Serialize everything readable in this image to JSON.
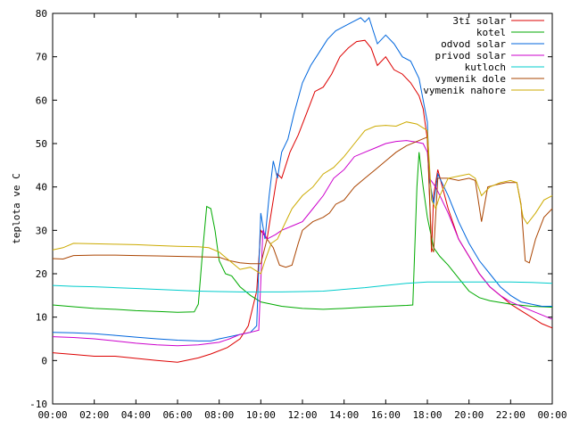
{
  "chart_data": {
    "type": "line",
    "title": "",
    "xlabel": "",
    "ylabel": "teplota ve C",
    "xlim": [
      0,
      24
    ],
    "ylim": [
      -10,
      80
    ],
    "xticks": [
      "00:00",
      "02:00",
      "04:00",
      "06:00",
      "08:00",
      "10:00",
      "12:00",
      "14:00",
      "16:00",
      "18:00",
      "20:00",
      "22:00",
      "00:00"
    ],
    "yticks": [
      -10,
      0,
      10,
      20,
      30,
      40,
      50,
      60,
      70,
      80
    ],
    "grid": false,
    "legend_position": "top-right",
    "series": [
      {
        "name": "3ti solar",
        "color": "#dd0000",
        "points": [
          [
            0,
            1.8
          ],
          [
            1,
            1.4
          ],
          [
            2,
            1.0
          ],
          [
            3,
            1.0
          ],
          [
            4,
            0.5
          ],
          [
            5,
            0
          ],
          [
            6,
            -0.4
          ],
          [
            7,
            0.6
          ],
          [
            7.6,
            1.5
          ],
          [
            8.4,
            3.0
          ],
          [
            9,
            5
          ],
          [
            9.4,
            8
          ],
          [
            9.8,
            16
          ],
          [
            10,
            30
          ],
          [
            10.3,
            28
          ],
          [
            10.6,
            37
          ],
          [
            10.8,
            43
          ],
          [
            11,
            42
          ],
          [
            11.4,
            48
          ],
          [
            11.8,
            52
          ],
          [
            12.2,
            57
          ],
          [
            12.6,
            62
          ],
          [
            13,
            63
          ],
          [
            13.4,
            66
          ],
          [
            13.8,
            70
          ],
          [
            14.2,
            72
          ],
          [
            14.6,
            73.5
          ],
          [
            15,
            73.8
          ],
          [
            15.3,
            72
          ],
          [
            15.6,
            68
          ],
          [
            16,
            70
          ],
          [
            16.4,
            67
          ],
          [
            16.8,
            66
          ],
          [
            17.2,
            64
          ],
          [
            17.6,
            61
          ],
          [
            17.8,
            58
          ],
          [
            18,
            51
          ],
          [
            18.2,
            25
          ],
          [
            18.3,
            38
          ],
          [
            18.5,
            44
          ],
          [
            19,
            35
          ],
          [
            19.5,
            28
          ],
          [
            20,
            24
          ],
          [
            20.5,
            20
          ],
          [
            21,
            17
          ],
          [
            21.5,
            15
          ],
          [
            22,
            13
          ],
          [
            22.5,
            11.5
          ],
          [
            23,
            10
          ],
          [
            23.5,
            8.5
          ],
          [
            24,
            7.5
          ]
        ]
      },
      {
        "name": "kotel",
        "color": "#00aa00",
        "points": [
          [
            0,
            12.8
          ],
          [
            1,
            12.4
          ],
          [
            2,
            12
          ],
          [
            3,
            11.8
          ],
          [
            4,
            11.5
          ],
          [
            5,
            11.3
          ],
          [
            6,
            11.1
          ],
          [
            6.8,
            11.2
          ],
          [
            7,
            13
          ],
          [
            7.2,
            25
          ],
          [
            7.4,
            35.5
          ],
          [
            7.6,
            35
          ],
          [
            7.8,
            30
          ],
          [
            8,
            23
          ],
          [
            8.3,
            20
          ],
          [
            8.6,
            19.5
          ],
          [
            9,
            17
          ],
          [
            9.5,
            15
          ],
          [
            10,
            13.5
          ],
          [
            11,
            12.5
          ],
          [
            12,
            12
          ],
          [
            13,
            11.8
          ],
          [
            14,
            12
          ],
          [
            15,
            12.3
          ],
          [
            16,
            12.5
          ],
          [
            17,
            12.7
          ],
          [
            17.3,
            12.8
          ],
          [
            17.5,
            40
          ],
          [
            17.6,
            48
          ],
          [
            17.8,
            40
          ],
          [
            18,
            33
          ],
          [
            18.3,
            26
          ],
          [
            18.6,
            24
          ],
          [
            19,
            22
          ],
          [
            19.5,
            19
          ],
          [
            20,
            16
          ],
          [
            20.5,
            14.5
          ],
          [
            21,
            13.8
          ],
          [
            22,
            13
          ],
          [
            23,
            12.5
          ],
          [
            24,
            12.3
          ]
        ]
      },
      {
        "name": "odvod solar",
        "color": "#0066dd",
        "points": [
          [
            0,
            6.5
          ],
          [
            1,
            6.4
          ],
          [
            2,
            6.2
          ],
          [
            3,
            5.8
          ],
          [
            4,
            5.4
          ],
          [
            5,
            5.0
          ],
          [
            6,
            4.7
          ],
          [
            7,
            4.5
          ],
          [
            7.6,
            4.5
          ],
          [
            8,
            5
          ],
          [
            8.5,
            5.5
          ],
          [
            9,
            6
          ],
          [
            9.5,
            6.5
          ],
          [
            9.8,
            8
          ],
          [
            10,
            34
          ],
          [
            10.2,
            28
          ],
          [
            10.4,
            38
          ],
          [
            10.6,
            46
          ],
          [
            10.8,
            42
          ],
          [
            11,
            48
          ],
          [
            11.3,
            51
          ],
          [
            11.6,
            57
          ],
          [
            12,
            64
          ],
          [
            12.4,
            68
          ],
          [
            12.8,
            71
          ],
          [
            13.2,
            74
          ],
          [
            13.6,
            76
          ],
          [
            14,
            77
          ],
          [
            14.4,
            78
          ],
          [
            14.8,
            79
          ],
          [
            15,
            78
          ],
          [
            15.2,
            79
          ],
          [
            15.4,
            76
          ],
          [
            15.6,
            73
          ],
          [
            16,
            75
          ],
          [
            16.4,
            73
          ],
          [
            16.8,
            70
          ],
          [
            17.2,
            69
          ],
          [
            17.6,
            65
          ],
          [
            17.8,
            60
          ],
          [
            18,
            55
          ],
          [
            18.1,
            42
          ],
          [
            18.3,
            36
          ],
          [
            18.5,
            43
          ],
          [
            19,
            38
          ],
          [
            19.5,
            32
          ],
          [
            20,
            27
          ],
          [
            20.5,
            23
          ],
          [
            21,
            20
          ],
          [
            21.5,
            17
          ],
          [
            22,
            15
          ],
          [
            22.5,
            13.5
          ],
          [
            23,
            13
          ],
          [
            23.5,
            12.5
          ],
          [
            24,
            12.5
          ]
        ]
      },
      {
        "name": "privod solar",
        "color": "#cc00cc",
        "points": [
          [
            0,
            5.5
          ],
          [
            1,
            5.3
          ],
          [
            2,
            5
          ],
          [
            3,
            4.5
          ],
          [
            4,
            4
          ],
          [
            5,
            3.6
          ],
          [
            6,
            3.4
          ],
          [
            7,
            3.6
          ],
          [
            8,
            4.2
          ],
          [
            8.5,
            5
          ],
          [
            9,
            6
          ],
          [
            9.5,
            6.5
          ],
          [
            9.9,
            7
          ],
          [
            10.1,
            30
          ],
          [
            10.3,
            28
          ],
          [
            10.7,
            29
          ],
          [
            11,
            30
          ],
          [
            11.5,
            31
          ],
          [
            12,
            32
          ],
          [
            12.5,
            35
          ],
          [
            13,
            38
          ],
          [
            13.5,
            42
          ],
          [
            14,
            44
          ],
          [
            14.5,
            47
          ],
          [
            15,
            48
          ],
          [
            15.5,
            49
          ],
          [
            16,
            50
          ],
          [
            16.5,
            50.5
          ],
          [
            17,
            50.7
          ],
          [
            17.5,
            50.3
          ],
          [
            17.8,
            50
          ],
          [
            18,
            48
          ],
          [
            18.1,
            42
          ],
          [
            18.4,
            40
          ],
          [
            18.6,
            38
          ],
          [
            19,
            34
          ],
          [
            19.5,
            28
          ],
          [
            20,
            24
          ],
          [
            20.5,
            20
          ],
          [
            21,
            17
          ],
          [
            21.5,
            15
          ],
          [
            22,
            13.5
          ],
          [
            22.5,
            12.5
          ],
          [
            23,
            11.5
          ],
          [
            23.5,
            10.5
          ],
          [
            24,
            9.5
          ]
        ]
      },
      {
        "name": "kutloch",
        "color": "#00cccc",
        "points": [
          [
            0,
            17.3
          ],
          [
            1,
            17.1
          ],
          [
            2,
            17
          ],
          [
            3,
            16.8
          ],
          [
            4,
            16.6
          ],
          [
            5,
            16.4
          ],
          [
            6,
            16.2
          ],
          [
            7,
            16
          ],
          [
            8,
            15.9
          ],
          [
            9,
            15.8
          ],
          [
            10,
            15.8
          ],
          [
            11,
            15.8
          ],
          [
            12,
            15.9
          ],
          [
            13,
            16
          ],
          [
            14,
            16.4
          ],
          [
            15,
            16.8
          ],
          [
            16,
            17.3
          ],
          [
            17,
            17.8
          ],
          [
            18,
            18.1
          ],
          [
            19,
            18.1
          ],
          [
            20,
            18.1
          ],
          [
            21,
            18.1
          ],
          [
            22,
            18.1
          ],
          [
            23,
            18
          ],
          [
            24,
            17.8
          ]
        ]
      },
      {
        "name": "vymenik dole",
        "color": "#aa4400",
        "points": [
          [
            0,
            23.5
          ],
          [
            0.5,
            23.4
          ],
          [
            1,
            24.2
          ],
          [
            2,
            24.3
          ],
          [
            3,
            24.3
          ],
          [
            4,
            24.2
          ],
          [
            5,
            24.1
          ],
          [
            6,
            24
          ],
          [
            7,
            23.9
          ],
          [
            8,
            23.8
          ],
          [
            8.5,
            23
          ],
          [
            9,
            22.5
          ],
          [
            9.5,
            22.3
          ],
          [
            10,
            22.3
          ],
          [
            10.3,
            28
          ],
          [
            10.6,
            26
          ],
          [
            10.9,
            22
          ],
          [
            11.2,
            21.5
          ],
          [
            11.5,
            22
          ],
          [
            11.8,
            27
          ],
          [
            12,
            30
          ],
          [
            12.5,
            32
          ],
          [
            13,
            33
          ],
          [
            13.3,
            34
          ],
          [
            13.6,
            36
          ],
          [
            14,
            37
          ],
          [
            14.5,
            40
          ],
          [
            15,
            42
          ],
          [
            15.5,
            44
          ],
          [
            16,
            46
          ],
          [
            16.5,
            48
          ],
          [
            17,
            49.5
          ],
          [
            17.5,
            50.5
          ],
          [
            18,
            51.5
          ],
          [
            18.2,
            26
          ],
          [
            18.3,
            25
          ],
          [
            18.5,
            42
          ],
          [
            19,
            42
          ],
          [
            19.5,
            41.5
          ],
          [
            20,
            42
          ],
          [
            20.3,
            41.5
          ],
          [
            20.6,
            32
          ],
          [
            20.9,
            40
          ],
          [
            21.3,
            40.5
          ],
          [
            21.8,
            41
          ],
          [
            22.3,
            41
          ],
          [
            22.5,
            36
          ],
          [
            22.7,
            23
          ],
          [
            22.9,
            22.5
          ],
          [
            23.2,
            28
          ],
          [
            23.6,
            33
          ],
          [
            24,
            35
          ]
        ]
      },
      {
        "name": "vymenik nahore",
        "color": "#ccaa00",
        "points": [
          [
            0,
            25.5
          ],
          [
            0.5,
            26
          ],
          [
            1,
            27
          ],
          [
            2,
            26.9
          ],
          [
            3,
            26.8
          ],
          [
            4,
            26.7
          ],
          [
            5,
            26.5
          ],
          [
            6,
            26.3
          ],
          [
            7,
            26.2
          ],
          [
            7.5,
            26
          ],
          [
            8,
            25
          ],
          [
            8.5,
            23
          ],
          [
            9,
            21
          ],
          [
            9.5,
            21.5
          ],
          [
            10,
            20
          ],
          [
            10.2,
            23
          ],
          [
            10.5,
            27
          ],
          [
            10.8,
            28
          ],
          [
            11,
            30
          ],
          [
            11.5,
            35
          ],
          [
            12,
            38
          ],
          [
            12.5,
            40
          ],
          [
            13,
            43
          ],
          [
            13.5,
            44.5
          ],
          [
            14,
            47
          ],
          [
            14.5,
            50
          ],
          [
            15,
            53
          ],
          [
            15.5,
            54
          ],
          [
            16,
            54.2
          ],
          [
            16.5,
            54
          ],
          [
            17,
            55
          ],
          [
            17.5,
            54.5
          ],
          [
            18,
            53
          ],
          [
            18.2,
            37
          ],
          [
            18.4,
            35
          ],
          [
            18.6,
            38
          ],
          [
            19,
            42
          ],
          [
            19.5,
            42.5
          ],
          [
            20,
            43
          ],
          [
            20.3,
            42
          ],
          [
            20.6,
            38
          ],
          [
            21,
            40
          ],
          [
            21.5,
            41
          ],
          [
            22,
            41.5
          ],
          [
            22.3,
            41
          ],
          [
            22.6,
            33
          ],
          [
            22.8,
            31.5
          ],
          [
            23.2,
            34
          ],
          [
            23.6,
            37
          ],
          [
            24,
            38
          ]
        ]
      }
    ]
  }
}
